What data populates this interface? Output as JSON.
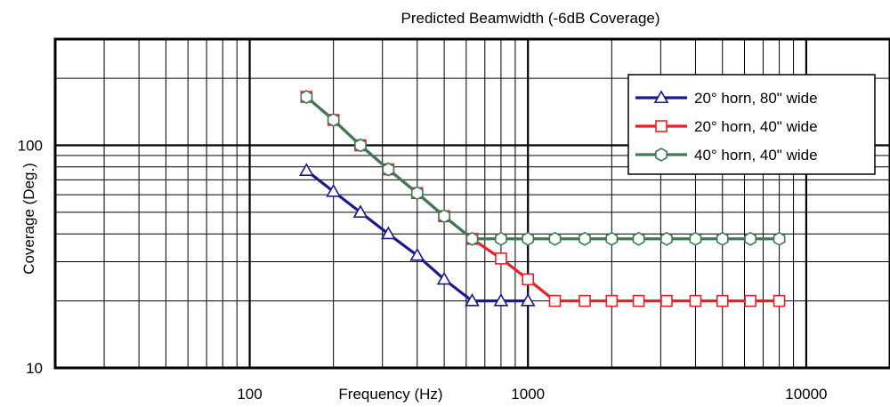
{
  "chart_data": {
    "type": "line",
    "title": "Predicted Beamwidth (-6dB Coverage)",
    "xlabel": "Frequency (Hz)",
    "ylabel": "Coverage (Deg.)",
    "x_scale": "log",
    "y_scale": "log",
    "xlim": [
      20,
      20000
    ],
    "ylim": [
      10,
      300
    ],
    "x_ticks": [
      {
        "value": 100,
        "label": "100"
      },
      {
        "value": 1000,
        "label": "1000"
      },
      {
        "value": 10000,
        "label": "10000"
      }
    ],
    "y_ticks": [
      {
        "value": 10,
        "label": "10"
      },
      {
        "value": 100,
        "label": "100"
      }
    ],
    "grid": true,
    "legend_position": "top-right",
    "series": [
      {
        "name": "20° horn, 80\" wide",
        "color": "#1a1a8c",
        "marker": "triangle",
        "x": [
          160,
          200,
          250,
          315,
          400,
          500,
          630,
          800,
          1000
        ],
        "y": [
          77,
          62,
          50,
          40,
          32,
          25,
          20,
          20,
          20
        ]
      },
      {
        "name": "20° horn, 40\" wide",
        "color": "#e8202a",
        "marker": "square",
        "x": [
          160,
          200,
          250,
          315,
          400,
          500,
          630,
          800,
          1000,
          1250,
          1600,
          2000,
          2500,
          3150,
          4000,
          5000,
          6300,
          8000
        ],
        "y": [
          165,
          130,
          100,
          78,
          61,
          48,
          38,
          31,
          25,
          20,
          20,
          20,
          20,
          20,
          20,
          20,
          20,
          20
        ]
      },
      {
        "name": "40° horn, 40\" wide",
        "color": "#3d7a55",
        "marker": "hexagon",
        "x": [
          160,
          200,
          250,
          315,
          400,
          500,
          630,
          800,
          1000,
          1250,
          1600,
          2000,
          2500,
          3150,
          4000,
          5000,
          6300,
          8000
        ],
        "y": [
          165,
          130,
          100,
          78,
          61,
          48,
          38,
          38,
          38,
          38,
          38,
          38,
          38,
          38,
          38,
          38,
          38,
          38
        ]
      }
    ]
  }
}
